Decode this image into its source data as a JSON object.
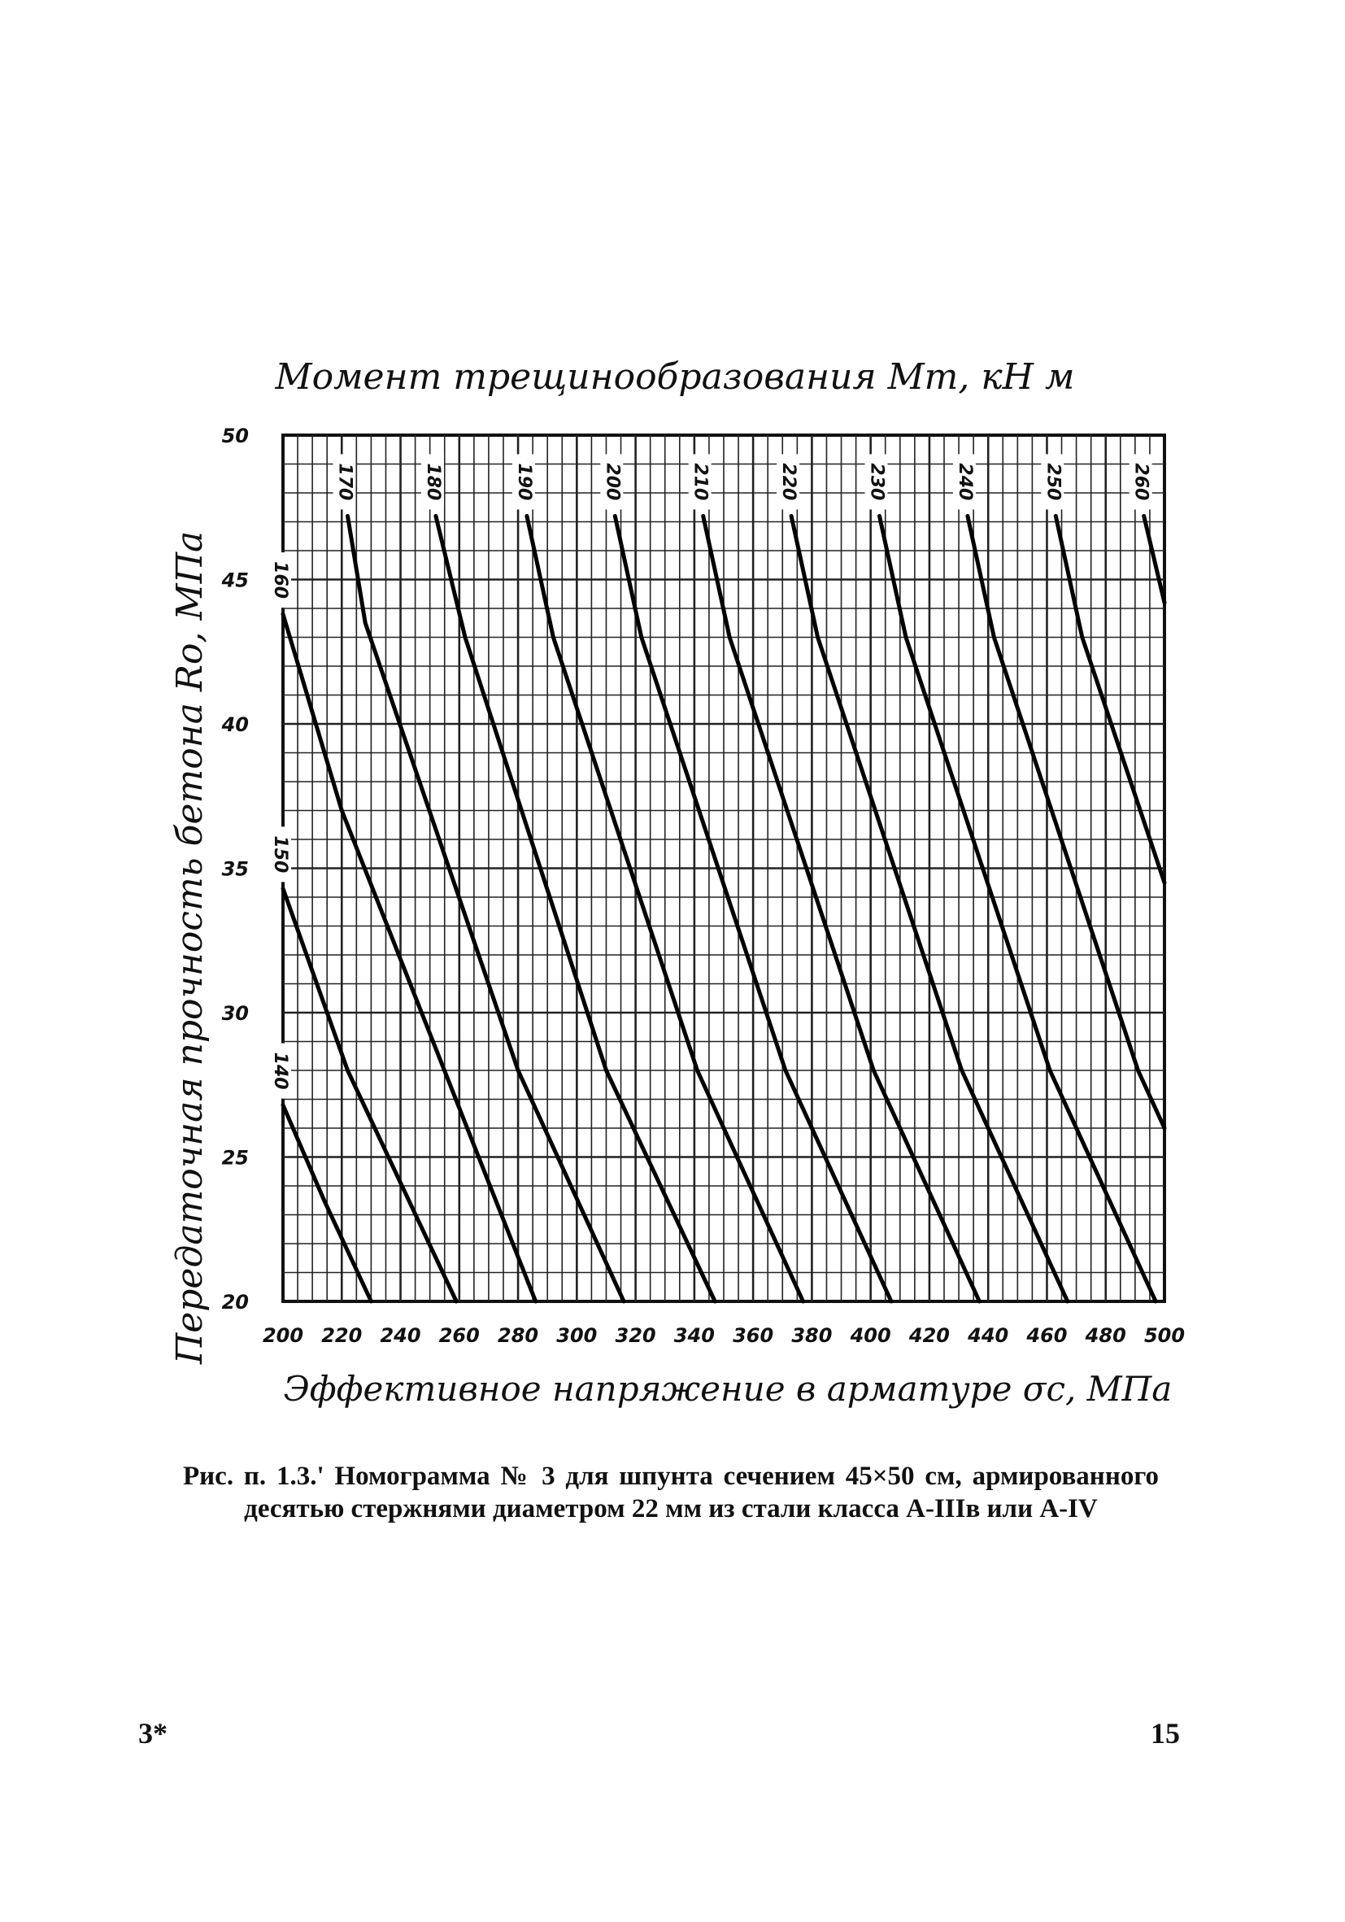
{
  "chart_data": {
    "type": "line",
    "title": "Момент трещинообразования Mт, кН м",
    "xlabel": "Эффективное напряжение в арматуре σс, МПа",
    "ylabel": "Передаточная прочность бетона Ro, МПа",
    "xlim": [
      200,
      500
    ],
    "ylim": [
      20,
      50
    ],
    "x_ticks": [
      "200",
      "220",
      "240",
      "260",
      "280",
      "300",
      "320",
      "340",
      "360",
      "380",
      "400",
      "420",
      "440",
      "460",
      "480",
      "500"
    ],
    "y_ticks": [
      "20",
      "25",
      "30",
      "35",
      "40",
      "45",
      "50"
    ],
    "grid": true,
    "series": [
      {
        "name": "140",
        "x": [
          200.0,
          214.0,
          230.0
        ],
        "y": [
          26.8,
          23.5,
          20.0
        ]
      },
      {
        "name": "150",
        "x": [
          200.0,
          222.0,
          259.0
        ],
        "y": [
          34.3,
          28.0,
          20.0
        ]
      },
      {
        "name": "160",
        "x": [
          200.0,
          220.0,
          286.0
        ],
        "y": [
          43.8,
          37.0,
          20.0
        ]
      },
      {
        "name": "170",
        "x": [
          222.0,
          228.0,
          280.0,
          316.0
        ],
        "y": [
          47.2,
          43.5,
          28.0,
          20.0
        ]
      },
      {
        "name": "180",
        "x": [
          252.0,
          262.0,
          310.0,
          347.0
        ],
        "y": [
          47.2,
          43.0,
          28.0,
          20.0
        ]
      },
      {
        "name": "190",
        "x": [
          283.0,
          292.0,
          341.0,
          377.0
        ],
        "y": [
          47.2,
          43.0,
          28.0,
          20.0
        ]
      },
      {
        "name": "200",
        "x": [
          313.0,
          322.0,
          371.0,
          407.0
        ],
        "y": [
          47.2,
          43.0,
          28.0,
          20.0
        ]
      },
      {
        "name": "210",
        "x": [
          343.0,
          352.0,
          401.0,
          437.0
        ],
        "y": [
          47.2,
          43.0,
          28.0,
          20.0
        ]
      },
      {
        "name": "220",
        "x": [
          373.0,
          382.0,
          431.0,
          467.0
        ],
        "y": [
          47.2,
          43.0,
          28.0,
          20.0
        ]
      },
      {
        "name": "230",
        "x": [
          403.0,
          412.0,
          461.0,
          497.0
        ],
        "y": [
          47.2,
          43.0,
          28.0,
          20.0
        ]
      },
      {
        "name": "240",
        "x": [
          433.0,
          442.0,
          491.0,
          500.0
        ],
        "y": [
          47.2,
          43.0,
          28.0,
          26.0
        ]
      },
      {
        "name": "250",
        "x": [
          463.0,
          472.0,
          500.0
        ],
        "y": [
          47.2,
          43.0,
          34.5
        ]
      },
      {
        "name": "260",
        "x": [
          493.0,
          500.0
        ],
        "y": [
          47.2,
          44.2
        ]
      }
    ]
  },
  "caption": {
    "text": "Рис. п. 1.3.' Номограмма № 3 для шпунта сечением 45×50 см, армированного десятью стержнями диаметром 22 мм из стали класса А-IIIв или А-IV"
  },
  "page_marks": {
    "left": "3*",
    "right": "15"
  }
}
